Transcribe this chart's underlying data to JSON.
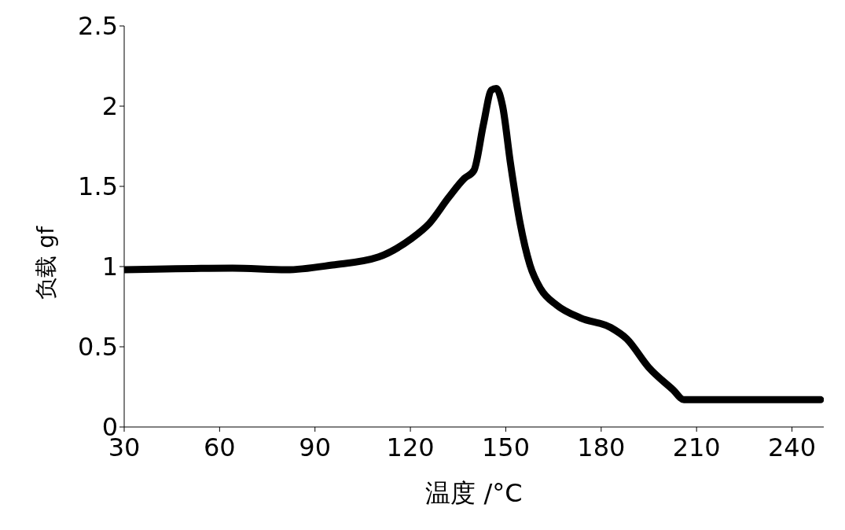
{
  "chart_data": {
    "type": "line",
    "xlabel": "温度 /°C",
    "ylabel": "负载 gf",
    "x": [
      30,
      64,
      81,
      95.5,
      110,
      120,
      126,
      132,
      137,
      140,
      143,
      145.5,
      147,
      149,
      151.5,
      154.5,
      157.6,
      161,
      166,
      173.5,
      183,
      188,
      195,
      202.7,
      206,
      222,
      249
    ],
    "series": [
      {
        "color": "#000000",
        "values": [
          0.98,
          0.99,
          0.98,
          1.01,
          1.06,
          1.17,
          1.27,
          1.43,
          1.55,
          1.6,
          1.89,
          2.1,
          2.11,
          2.0,
          1.64,
          1.27,
          1.01,
          0.86,
          0.76,
          0.68,
          0.62,
          0.55,
          0.37,
          0.23,
          0.17,
          0.17,
          0.17
        ]
      }
    ],
    "xlim": [
      30,
      250
    ],
    "xticks": [
      30,
      60,
      90,
      120,
      150,
      180,
      210,
      240
    ],
    "ylim": [
      0,
      2.5
    ],
    "yticks": [
      0,
      0.5,
      1,
      1.5,
      2,
      2.5
    ],
    "grid": false,
    "legend": false,
    "marker": "none",
    "line_style": "solid"
  }
}
